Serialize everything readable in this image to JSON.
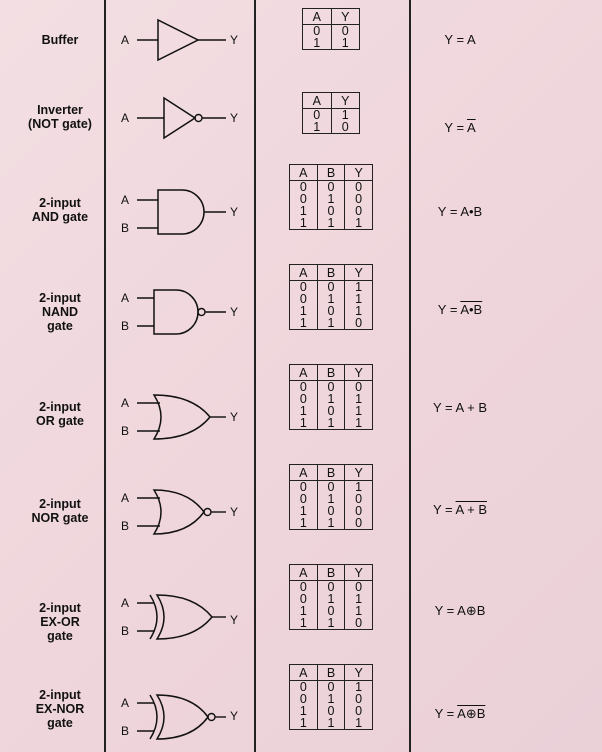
{
  "gates": [
    {
      "id": "buffer",
      "name": [
        "Buffer"
      ],
      "type": "buffer",
      "inputs": [
        "A"
      ],
      "output": "Y",
      "table": {
        "headers": [
          "A",
          "Y"
        ],
        "rows": [
          [
            "0",
            "0"
          ],
          [
            "1",
            "1"
          ]
        ]
      },
      "expr": {
        "pre": "Y = ",
        "over": "",
        "post": "A"
      }
    },
    {
      "id": "inverter",
      "name": [
        "Inverter",
        "(NOT gate)"
      ],
      "type": "not",
      "inputs": [
        "A"
      ],
      "output": "Y",
      "table": {
        "headers": [
          "A",
          "Y"
        ],
        "rows": [
          [
            "0",
            "1"
          ],
          [
            "1",
            "0"
          ]
        ]
      },
      "expr": {
        "pre": "Y = ",
        "over": "A",
        "post": ""
      }
    },
    {
      "id": "and",
      "name": [
        "2-input",
        "AND gate"
      ],
      "type": "and",
      "inputs": [
        "A",
        "B"
      ],
      "output": "Y",
      "table": {
        "headers": [
          "A",
          "B",
          "Y"
        ],
        "rows": [
          [
            "0",
            "0",
            "0"
          ],
          [
            "0",
            "1",
            "0"
          ],
          [
            "1",
            "0",
            "0"
          ],
          [
            "1",
            "1",
            "1"
          ]
        ]
      },
      "expr": {
        "pre": "Y = ",
        "over": "",
        "post": "A•B"
      }
    },
    {
      "id": "nand",
      "name": [
        "2-input",
        "NAND",
        "gate"
      ],
      "type": "nand",
      "inputs": [
        "A",
        "B"
      ],
      "output": "Y",
      "table": {
        "headers": [
          "A",
          "B",
          "Y"
        ],
        "rows": [
          [
            "0",
            "0",
            "1"
          ],
          [
            "0",
            "1",
            "1"
          ],
          [
            "1",
            "0",
            "1"
          ],
          [
            "1",
            "1",
            "0"
          ]
        ]
      },
      "expr": {
        "pre": "Y = ",
        "over": "A•B",
        "post": ""
      }
    },
    {
      "id": "or",
      "name": [
        "2-input",
        "OR gate"
      ],
      "type": "or",
      "inputs": [
        "A",
        "B"
      ],
      "output": "Y",
      "table": {
        "headers": [
          "A",
          "B",
          "Y"
        ],
        "rows": [
          [
            "0",
            "0",
            "0"
          ],
          [
            "0",
            "1",
            "1"
          ],
          [
            "1",
            "0",
            "1"
          ],
          [
            "1",
            "1",
            "1"
          ]
        ]
      },
      "expr": {
        "pre": "Y = ",
        "over": "",
        "post": "A + B"
      }
    },
    {
      "id": "nor",
      "name": [
        "2-input",
        "NOR gate"
      ],
      "type": "nor",
      "inputs": [
        "A",
        "B"
      ],
      "output": "Y",
      "table": {
        "headers": [
          "A",
          "B",
          "Y"
        ],
        "rows": [
          [
            "0",
            "0",
            "1"
          ],
          [
            "0",
            "1",
            "0"
          ],
          [
            "1",
            "0",
            "0"
          ],
          [
            "1",
            "1",
            "0"
          ]
        ]
      },
      "expr": {
        "pre": "Y = ",
        "over": "A + B",
        "post": ""
      }
    },
    {
      "id": "xor",
      "name": [
        "2-input",
        "EX-OR",
        "gate"
      ],
      "type": "xor",
      "inputs": [
        "A",
        "B"
      ],
      "output": "Y",
      "table": {
        "headers": [
          "A",
          "B",
          "Y"
        ],
        "rows": [
          [
            "0",
            "0",
            "0"
          ],
          [
            "0",
            "1",
            "1"
          ],
          [
            "1",
            "0",
            "1"
          ],
          [
            "1",
            "1",
            "0"
          ]
        ]
      },
      "expr": {
        "pre": "Y = ",
        "over": "",
        "post": "A⊕B"
      }
    },
    {
      "id": "xnor",
      "name": [
        "2-input",
        "EX-NOR",
        "gate"
      ],
      "type": "xnor",
      "inputs": [
        "A",
        "B"
      ],
      "output": "Y",
      "table": {
        "headers": [
          "A",
          "B",
          "Y"
        ],
        "rows": [
          [
            "0",
            "0",
            "1"
          ],
          [
            "0",
            "1",
            "0"
          ],
          [
            "1",
            "0",
            "0"
          ],
          [
            "1",
            "1",
            "1"
          ]
        ]
      },
      "expr": {
        "pre": "Y = ",
        "over": "A⊕B",
        "post": ""
      }
    }
  ]
}
